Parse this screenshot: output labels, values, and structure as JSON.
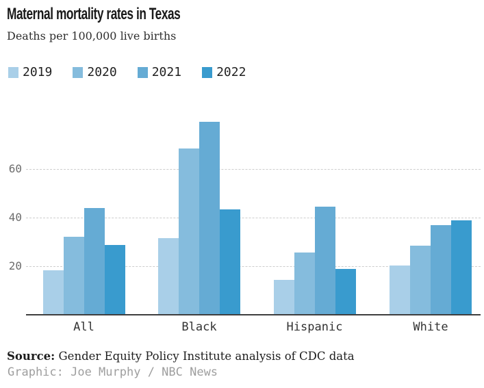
{
  "header": {
    "title": "Maternal mortality rates in Texas",
    "subtitle": "Deaths per 100,000 live births"
  },
  "chart_data": {
    "type": "bar",
    "title": "Maternal mortality rates in Texas",
    "subtitle": "Deaths per 100,000 live births",
    "ylabel": "Deaths per 100,000 live births",
    "xlabel": "",
    "categories": [
      "All",
      "Black",
      "Hispanic",
      "White"
    ],
    "series": [
      {
        "name": "2019",
        "color": "#a9cfe8",
        "values": [
          18.3,
          31.6,
          14.5,
          20.2
        ]
      },
      {
        "name": "2020",
        "color": "#85bcdd",
        "values": [
          32.0,
          68.4,
          25.7,
          28.4
        ]
      },
      {
        "name": "2021",
        "color": "#65abd4",
        "values": [
          43.9,
          79.4,
          44.6,
          36.9
        ]
      },
      {
        "name": "2022",
        "color": "#399bce",
        "values": [
          28.6,
          43.5,
          19.0,
          39.0
        ]
      }
    ],
    "yticks": [
      20,
      40,
      60
    ],
    "ylim": [
      0,
      82
    ],
    "grid": "horizontal-dashed",
    "legend_position": "top-left"
  },
  "footer": {
    "source_label": "Source:",
    "source_text": " Gender Equity Policy Institute analysis of CDC data",
    "credit": "Graphic: Joe Murphy / NBC News"
  }
}
